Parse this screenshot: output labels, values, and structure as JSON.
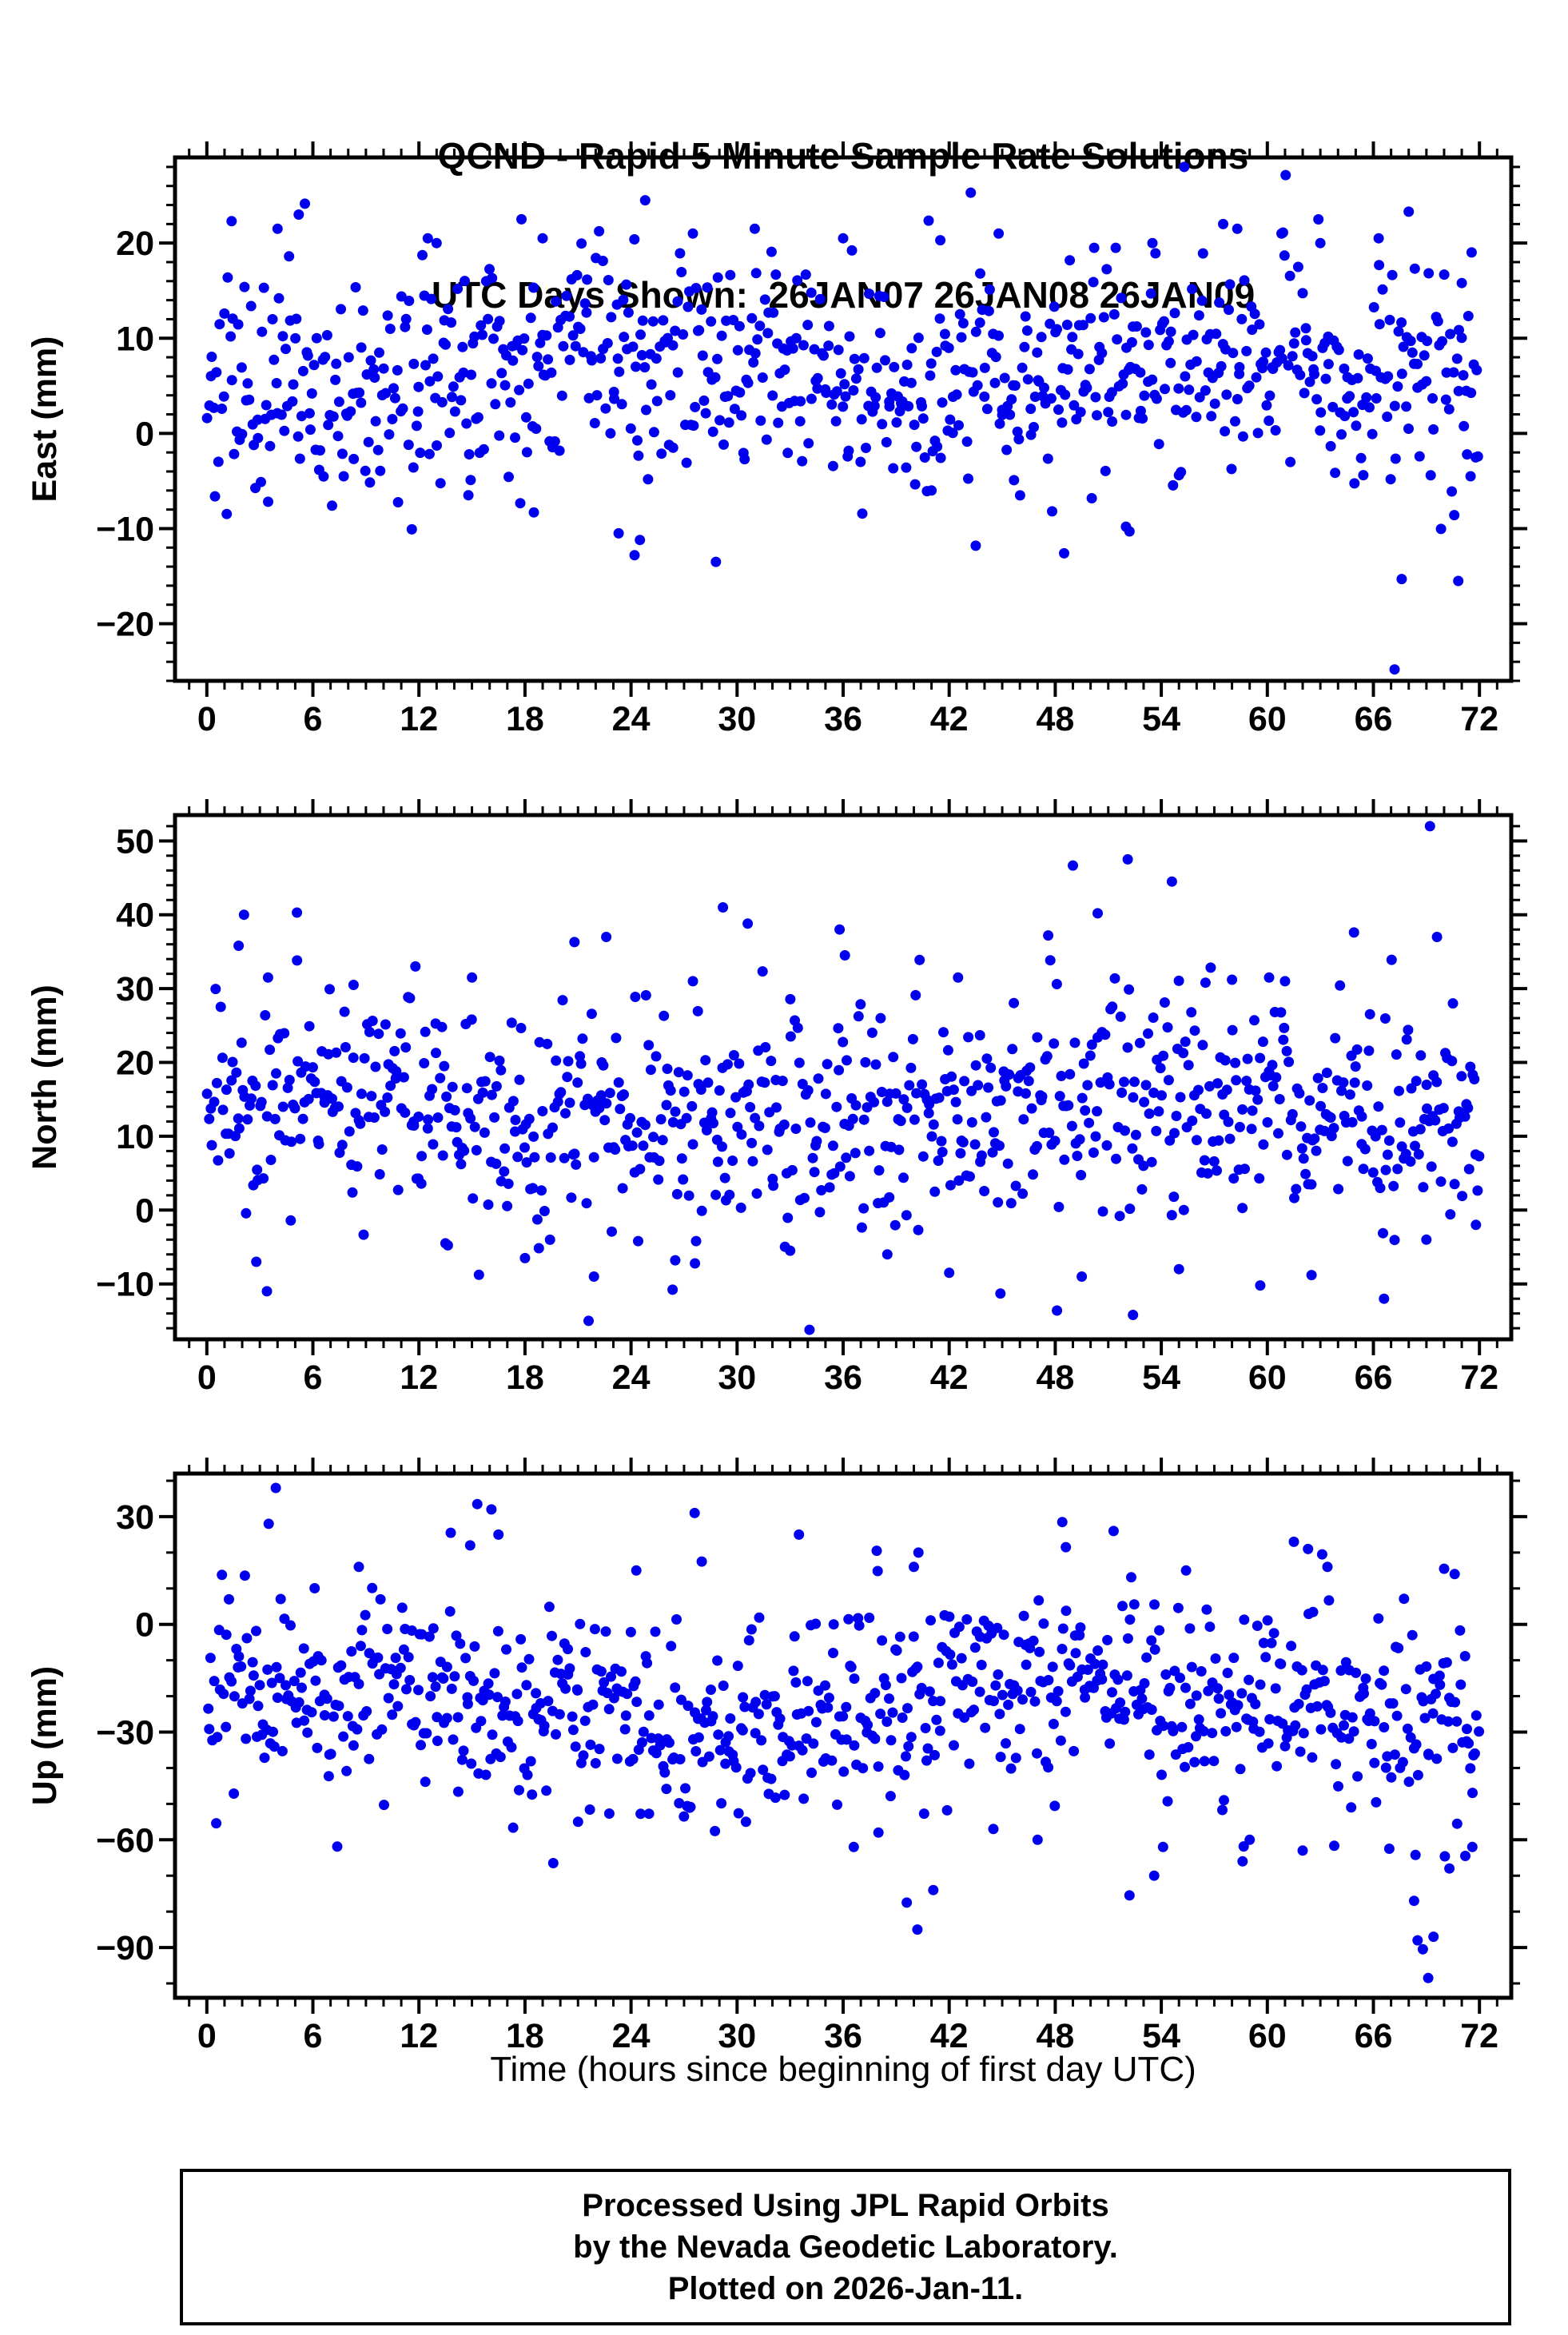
{
  "title": {
    "line1": "QCND - Rapid 5 Minute Sample Rate Solutions",
    "line2": "UTC Days Shown:  26JAN07 26JAN08 26JAN09"
  },
  "footer": {
    "line1": "Processed Using JPL Rapid Orbits",
    "line2": "by the Nevada Geodetic Laboratory.",
    "line3": "Plotted on 2026-Jan-11."
  },
  "chart_data": {
    "type": "scatter",
    "station": "QCND",
    "title": "QCND - Rapid 5 Minute Sample Rate Solutions",
    "subtitle": "UTC Days Shown:  26JAN07 26JAN08 26JAN09",
    "utc_days": [
      "26JAN07",
      "26JAN08",
      "26JAN09"
    ],
    "xlabel": "Time (hours since beginning of first day UTC)",
    "x_axis": {
      "min": -1.8,
      "max": 73.8,
      "major_ticks": [
        0,
        6,
        12,
        18,
        24,
        30,
        36,
        42,
        48,
        54,
        60,
        66,
        72
      ],
      "minor_step": 1
    },
    "marker": {
      "shape": "circle",
      "color": "#0000EE",
      "radius_px": 6.5
    },
    "grid": false,
    "legend": "none",
    "sampling": "5-minute rapid solutions over 3 UTC days; values in mm; clouds summarized by mean/sd plus listed extreme points",
    "panels": [
      {
        "name": "east",
        "ylabel": "East (mm)",
        "ylim": [
          -26,
          29
        ],
        "major_ticks": [
          -20,
          -10,
          0,
          10,
          20
        ],
        "minor_step": 2,
        "n_points": 800,
        "mean": 6.5,
        "sd": 6.0,
        "trend_amp": 1.8,
        "trend_period": 34,
        "trend_phase": 3.5,
        "seed": 101,
        "outliers": [
          [
            1.4,
            22.3
          ],
          [
            4.0,
            21.5
          ],
          [
            5.2,
            23.0
          ],
          [
            12.5,
            20.5
          ],
          [
            13.0,
            20.0
          ],
          [
            17.8,
            22.5
          ],
          [
            19.0,
            20.5
          ],
          [
            24.8,
            24.5
          ],
          [
            27.5,
            21.0
          ],
          [
            31.0,
            21.5
          ],
          [
            36.0,
            20.5
          ],
          [
            41.5,
            20.3
          ],
          [
            44.8,
            21.0
          ],
          [
            50.2,
            19.5
          ],
          [
            53.5,
            20.0
          ],
          [
            55.3,
            28.0
          ],
          [
            57.5,
            22.0
          ],
          [
            58.3,
            21.5
          ],
          [
            60.8,
            21.0
          ],
          [
            63.0,
            20.0
          ],
          [
            66.3,
            20.5
          ],
          [
            68.0,
            23.3
          ],
          [
            71.0,
            15.8
          ],
          [
            14.8,
            -6.5
          ],
          [
            18.5,
            -8.3
          ],
          [
            23.3,
            -10.5
          ],
          [
            24.2,
            -12.8
          ],
          [
            24.5,
            -11.2
          ],
          [
            28.8,
            -13.5
          ],
          [
            41.0,
            -6.0
          ],
          [
            43.5,
            -11.8
          ],
          [
            48.5,
            -12.6
          ],
          [
            52.0,
            -9.8
          ],
          [
            52.2,
            -10.3
          ],
          [
            67.2,
            -24.8
          ],
          [
            67.6,
            -15.3
          ],
          [
            70.8,
            -15.5
          ],
          [
            71.5,
            -4.5
          ]
        ]
      },
      {
        "name": "north",
        "ylabel": "North (mm)",
        "ylim": [
          -17.5,
          53.5
        ],
        "major_ticks": [
          -10,
          0,
          10,
          20,
          30,
          40,
          50
        ],
        "minor_step": 2,
        "n_points": 800,
        "mean": 13.5,
        "sd": 7.5,
        "trend_amp": 2.2,
        "trend_period": 50,
        "trend_phase": 1.0,
        "seed": 202,
        "outliers": [
          [
            1.8,
            35.8
          ],
          [
            2.1,
            40.0
          ],
          [
            5.1,
            40.3
          ],
          [
            8.3,
            30.5
          ],
          [
            11.8,
            33.0
          ],
          [
            15.0,
            31.5
          ],
          [
            20.8,
            36.3
          ],
          [
            22.6,
            37.0
          ],
          [
            27.5,
            31.0
          ],
          [
            29.2,
            41.0
          ],
          [
            30.6,
            38.8
          ],
          [
            35.8,
            38.0
          ],
          [
            36.1,
            34.5
          ],
          [
            42.5,
            31.5
          ],
          [
            47.6,
            37.2
          ],
          [
            50.4,
            40.2
          ],
          [
            52.1,
            47.5
          ],
          [
            54.6,
            44.5
          ],
          [
            56.5,
            30.8
          ],
          [
            58.0,
            31.2
          ],
          [
            60.1,
            31.5
          ],
          [
            61.0,
            31.0
          ],
          [
            64.9,
            37.6
          ],
          [
            69.2,
            52.0
          ],
          [
            69.6,
            37.0
          ],
          [
            70.5,
            28.0
          ],
          [
            2.8,
            -7.0
          ],
          [
            3.4,
            -11.0
          ],
          [
            13.5,
            -4.5
          ],
          [
            18.0,
            -6.5
          ],
          [
            21.6,
            -15.0
          ],
          [
            21.9,
            -9.0
          ],
          [
            26.5,
            -6.8
          ],
          [
            33.0,
            -5.5
          ],
          [
            38.5,
            -6.0
          ],
          [
            42.0,
            -8.5
          ],
          [
            44.9,
            -11.3
          ],
          [
            48.1,
            -13.6
          ],
          [
            49.5,
            -9.0
          ],
          [
            52.4,
            -14.2
          ],
          [
            55.0,
            -8.0
          ],
          [
            59.6,
            -10.2
          ],
          [
            62.5,
            -8.8
          ],
          [
            66.6,
            -12.0
          ],
          [
            69.0,
            -4.0
          ],
          [
            71.8,
            -2.0
          ]
        ]
      },
      {
        "name": "up",
        "ylabel": "Up (mm)",
        "ylim": [
          -104,
          42
        ],
        "major_ticks": [
          -90,
          -60,
          -30,
          0,
          30
        ],
        "minor_step": 10,
        "n_points": 800,
        "mean": -22,
        "sd": 13.5,
        "trend_amp": 5,
        "trend_period": 44,
        "trend_phase": 0.8,
        "seed": 303,
        "outliers": [
          [
            3.5,
            28.0
          ],
          [
            3.9,
            38.0
          ],
          [
            8.6,
            16.0
          ],
          [
            13.8,
            25.5
          ],
          [
            14.9,
            22.0
          ],
          [
            15.3,
            33.5
          ],
          [
            16.1,
            32.0
          ],
          [
            16.5,
            25.0
          ],
          [
            24.3,
            15.0
          ],
          [
            27.6,
            31.0
          ],
          [
            28.0,
            17.5
          ],
          [
            33.5,
            25.0
          ],
          [
            37.9,
            20.5
          ],
          [
            40.0,
            16.0
          ],
          [
            48.4,
            28.5
          ],
          [
            48.6,
            21.5
          ],
          [
            51.3,
            26.0
          ],
          [
            55.4,
            15.0
          ],
          [
            61.5,
            23.0
          ],
          [
            62.3,
            21.0
          ],
          [
            63.1,
            19.5
          ],
          [
            63.4,
            16.0
          ],
          [
            70.0,
            15.5
          ],
          [
            70.6,
            14.0
          ],
          [
            19.6,
            -66.5
          ],
          [
            21.0,
            -55.0
          ],
          [
            30.5,
            -55.0
          ],
          [
            36.6,
            -62.0
          ],
          [
            38.0,
            -58.0
          ],
          [
            39.6,
            -77.5
          ],
          [
            40.2,
            -85.0
          ],
          [
            41.1,
            -74.0
          ],
          [
            44.5,
            -57.0
          ],
          [
            47.0,
            -60.0
          ],
          [
            52.2,
            -75.5
          ],
          [
            53.6,
            -70.0
          ],
          [
            54.1,
            -62.0
          ],
          [
            58.6,
            -66.0
          ],
          [
            59.0,
            -60.0
          ],
          [
            62.0,
            -63.0
          ],
          [
            66.9,
            -62.5
          ],
          [
            68.3,
            -77.0
          ],
          [
            68.5,
            -88.0
          ],
          [
            68.8,
            -90.5
          ],
          [
            69.1,
            -98.5
          ],
          [
            69.4,
            -87.0
          ],
          [
            70.3,
            -68.0
          ],
          [
            71.2,
            -64.5
          ],
          [
            71.6,
            -62.0
          ]
        ]
      }
    ]
  }
}
